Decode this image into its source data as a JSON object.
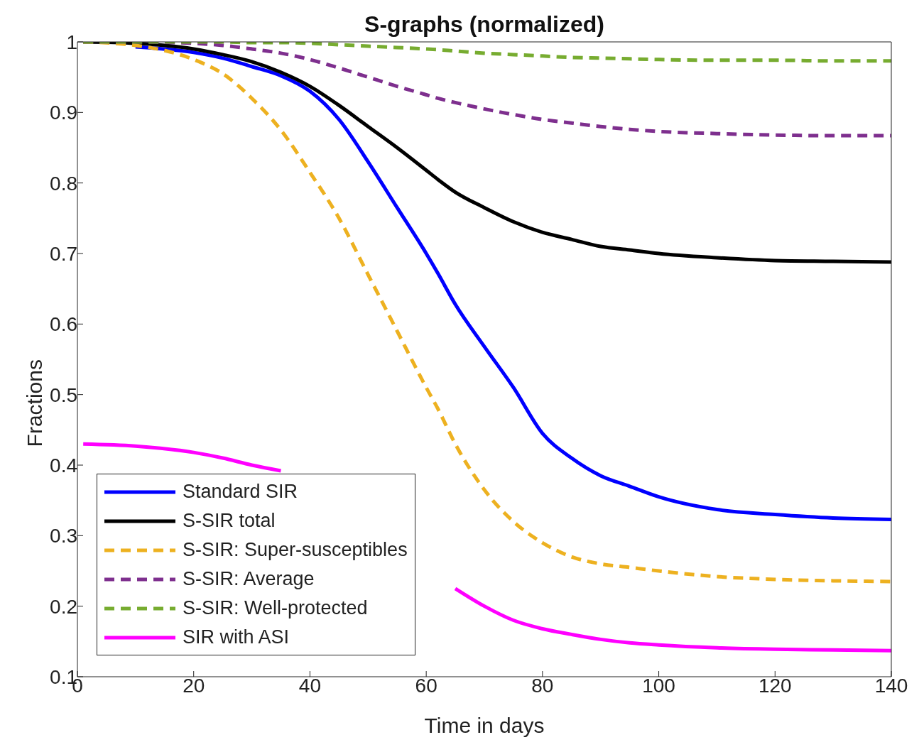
{
  "chart_data": {
    "type": "line",
    "title": "S-graphs (normalized)",
    "xlabel": "Time in days",
    "ylabel": "Fractions",
    "x": [
      1,
      10,
      20,
      25,
      30,
      35,
      40,
      45,
      50,
      55,
      60,
      62,
      65,
      70,
      75,
      80,
      85,
      90,
      95,
      100,
      110,
      120,
      130,
      140
    ],
    "series": [
      {
        "name": "Standard SIR",
        "color": "#0000ff",
        "line_style": "solid",
        "values": [
          null,
          0.993,
          0.985,
          0.977,
          0.965,
          0.952,
          0.93,
          0.89,
          0.83,
          0.765,
          0.7,
          0.672,
          0.628,
          0.568,
          0.51,
          0.445,
          0.41,
          0.385,
          0.37,
          0.355,
          0.337,
          0.33,
          0.325,
          0.323
        ]
      },
      {
        "name": "S-SIR total",
        "color": "#000000",
        "line_style": "solid",
        "values": [
          1.0,
          0.998,
          0.99,
          0.982,
          0.972,
          0.957,
          0.937,
          0.91,
          0.88,
          0.85,
          0.818,
          0.805,
          0.787,
          0.765,
          0.745,
          0.73,
          0.72,
          0.71,
          0.705,
          0.7,
          0.694,
          0.69,
          0.689,
          0.688
        ]
      },
      {
        "name": "S-SIR: Super-susceptibles",
        "color": "#edb120",
        "line_style": "dashed",
        "values": [
          1.0,
          0.995,
          0.975,
          0.955,
          0.92,
          0.875,
          0.815,
          0.75,
          0.67,
          0.59,
          0.51,
          0.48,
          0.43,
          0.365,
          0.32,
          0.29,
          0.27,
          0.26,
          0.255,
          0.25,
          0.242,
          0.238,
          0.236,
          0.235
        ]
      },
      {
        "name": "S-SIR: Average",
        "color": "#7e2f8e",
        "line_style": "dashed",
        "values": [
          1.0,
          1.0,
          0.998,
          0.995,
          0.99,
          0.984,
          0.975,
          0.963,
          0.95,
          0.937,
          0.925,
          0.92,
          0.914,
          0.905,
          0.897,
          0.89,
          0.885,
          0.88,
          0.876,
          0.873,
          0.87,
          0.868,
          0.867,
          0.867
        ]
      },
      {
        "name": "S-SIR: Well-protected",
        "color": "#77ac30",
        "line_style": "dashed",
        "values": [
          1.0,
          1.0,
          1.0,
          1.0,
          0.999,
          0.999,
          0.998,
          0.996,
          0.994,
          0.992,
          0.99,
          0.989,
          0.987,
          0.984,
          0.982,
          0.98,
          0.978,
          0.977,
          0.976,
          0.975,
          0.974,
          0.974,
          0.973,
          0.973
        ]
      },
      {
        "name": "SIR with ASI",
        "color": "#ff00ff",
        "line_style": "solid",
        "values": [
          0.43,
          0.427,
          0.418,
          0.41,
          0.4,
          0.392,
          null,
          null,
          null,
          null,
          null,
          null,
          0.225,
          0.2,
          0.18,
          0.168,
          0.16,
          0.153,
          0.148,
          0.145,
          0.141,
          0.139,
          0.138,
          0.137
        ]
      }
    ],
    "xlim": [
      0,
      140
    ],
    "xticks": [
      0,
      20,
      40,
      60,
      80,
      100,
      120,
      140
    ],
    "ylim": [
      0.1,
      1
    ],
    "yticks": [
      0.1,
      0.2,
      0.3,
      0.4,
      0.5,
      0.6,
      0.7,
      0.8,
      0.9,
      1
    ],
    "legend": "bottom left",
    "marker": "none"
  }
}
